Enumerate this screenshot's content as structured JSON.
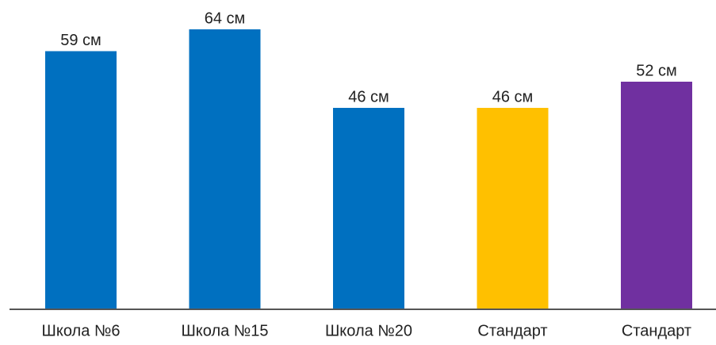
{
  "chart_data": {
    "type": "bar",
    "categories": [
      "Школа №6",
      "Школа №15",
      "Школа №20",
      "Стандарт",
      "Стандарт"
    ],
    "values": [
      59,
      64,
      46,
      46,
      52
    ],
    "value_labels": [
      "59 см",
      "64 см",
      "46 см",
      "46 см",
      "52 см"
    ],
    "colors": [
      "#0070c0",
      "#0070c0",
      "#0070c0",
      "#ffc000",
      "#7030a0"
    ]
  }
}
